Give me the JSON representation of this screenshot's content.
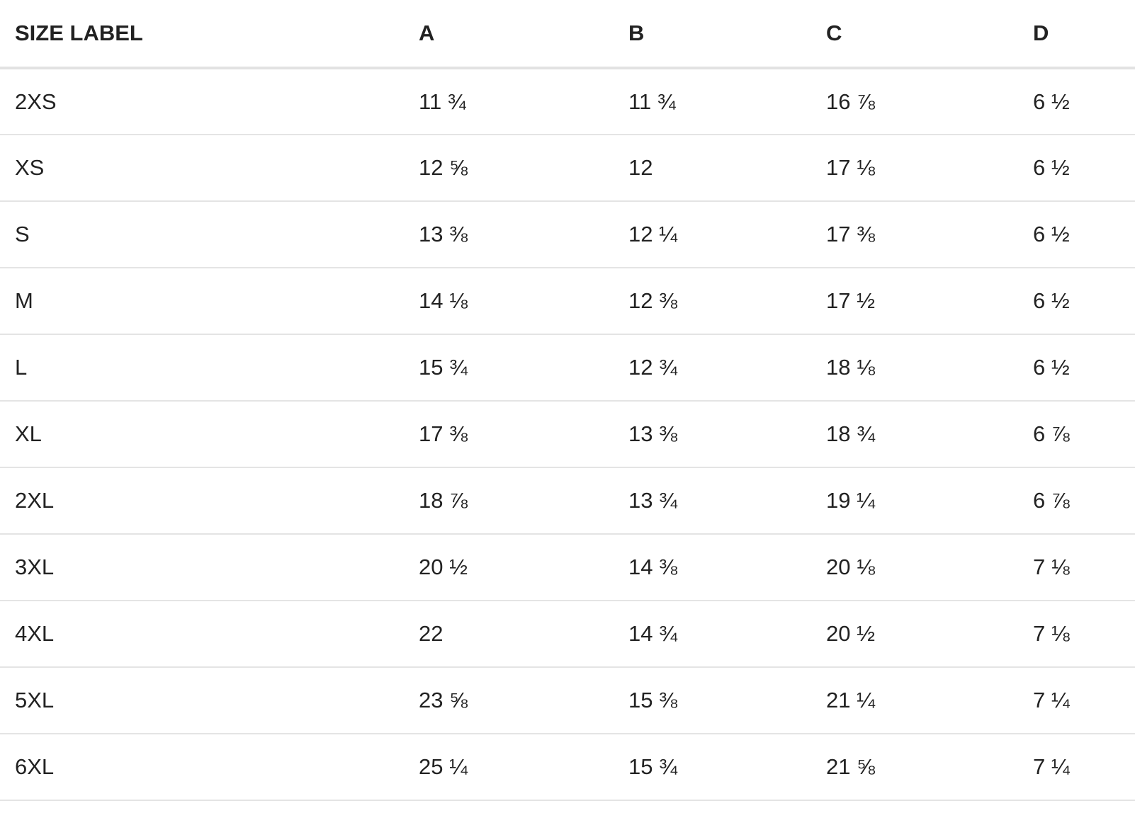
{
  "table": {
    "headers": [
      "SIZE LABEL",
      "A",
      "B",
      "C",
      "D"
    ],
    "rows": [
      [
        "2XS",
        "11 ¾",
        "11 ¾",
        "16 ⅞",
        "6 ½"
      ],
      [
        "XS",
        "12 ⅝",
        "12",
        "17 ⅛",
        "6 ½"
      ],
      [
        "S",
        "13 ⅜",
        "12 ¼",
        "17 ⅜",
        "6 ½"
      ],
      [
        "M",
        "14 ⅛",
        "12 ⅜",
        "17 ½",
        "6 ½"
      ],
      [
        "L",
        "15 ¾",
        "12 ¾",
        "18 ⅛",
        "6 ½"
      ],
      [
        "XL",
        "17 ⅜",
        "13 ⅜",
        "18 ¾",
        "6 ⅞"
      ],
      [
        "2XL",
        "18 ⅞",
        "13 ¾",
        "19 ¼",
        "6 ⅞"
      ],
      [
        "3XL",
        "20 ½",
        "14 ⅜",
        "20 ⅛",
        "7 ⅛"
      ],
      [
        "4XL",
        "22",
        "14 ¾",
        "20 ½",
        "7 ⅛"
      ],
      [
        "5XL",
        "23 ⅝",
        "15 ⅜",
        "21 ¼",
        "7 ¼"
      ],
      [
        "6XL",
        "25 ¼",
        "15 ¾",
        "21 ⅝",
        "7 ¼"
      ]
    ]
  },
  "colors": {
    "text": "#222222",
    "header_rule": "#e2e2e2",
    "row_rule": "#e4e4e4",
    "background": "#ffffff"
  }
}
